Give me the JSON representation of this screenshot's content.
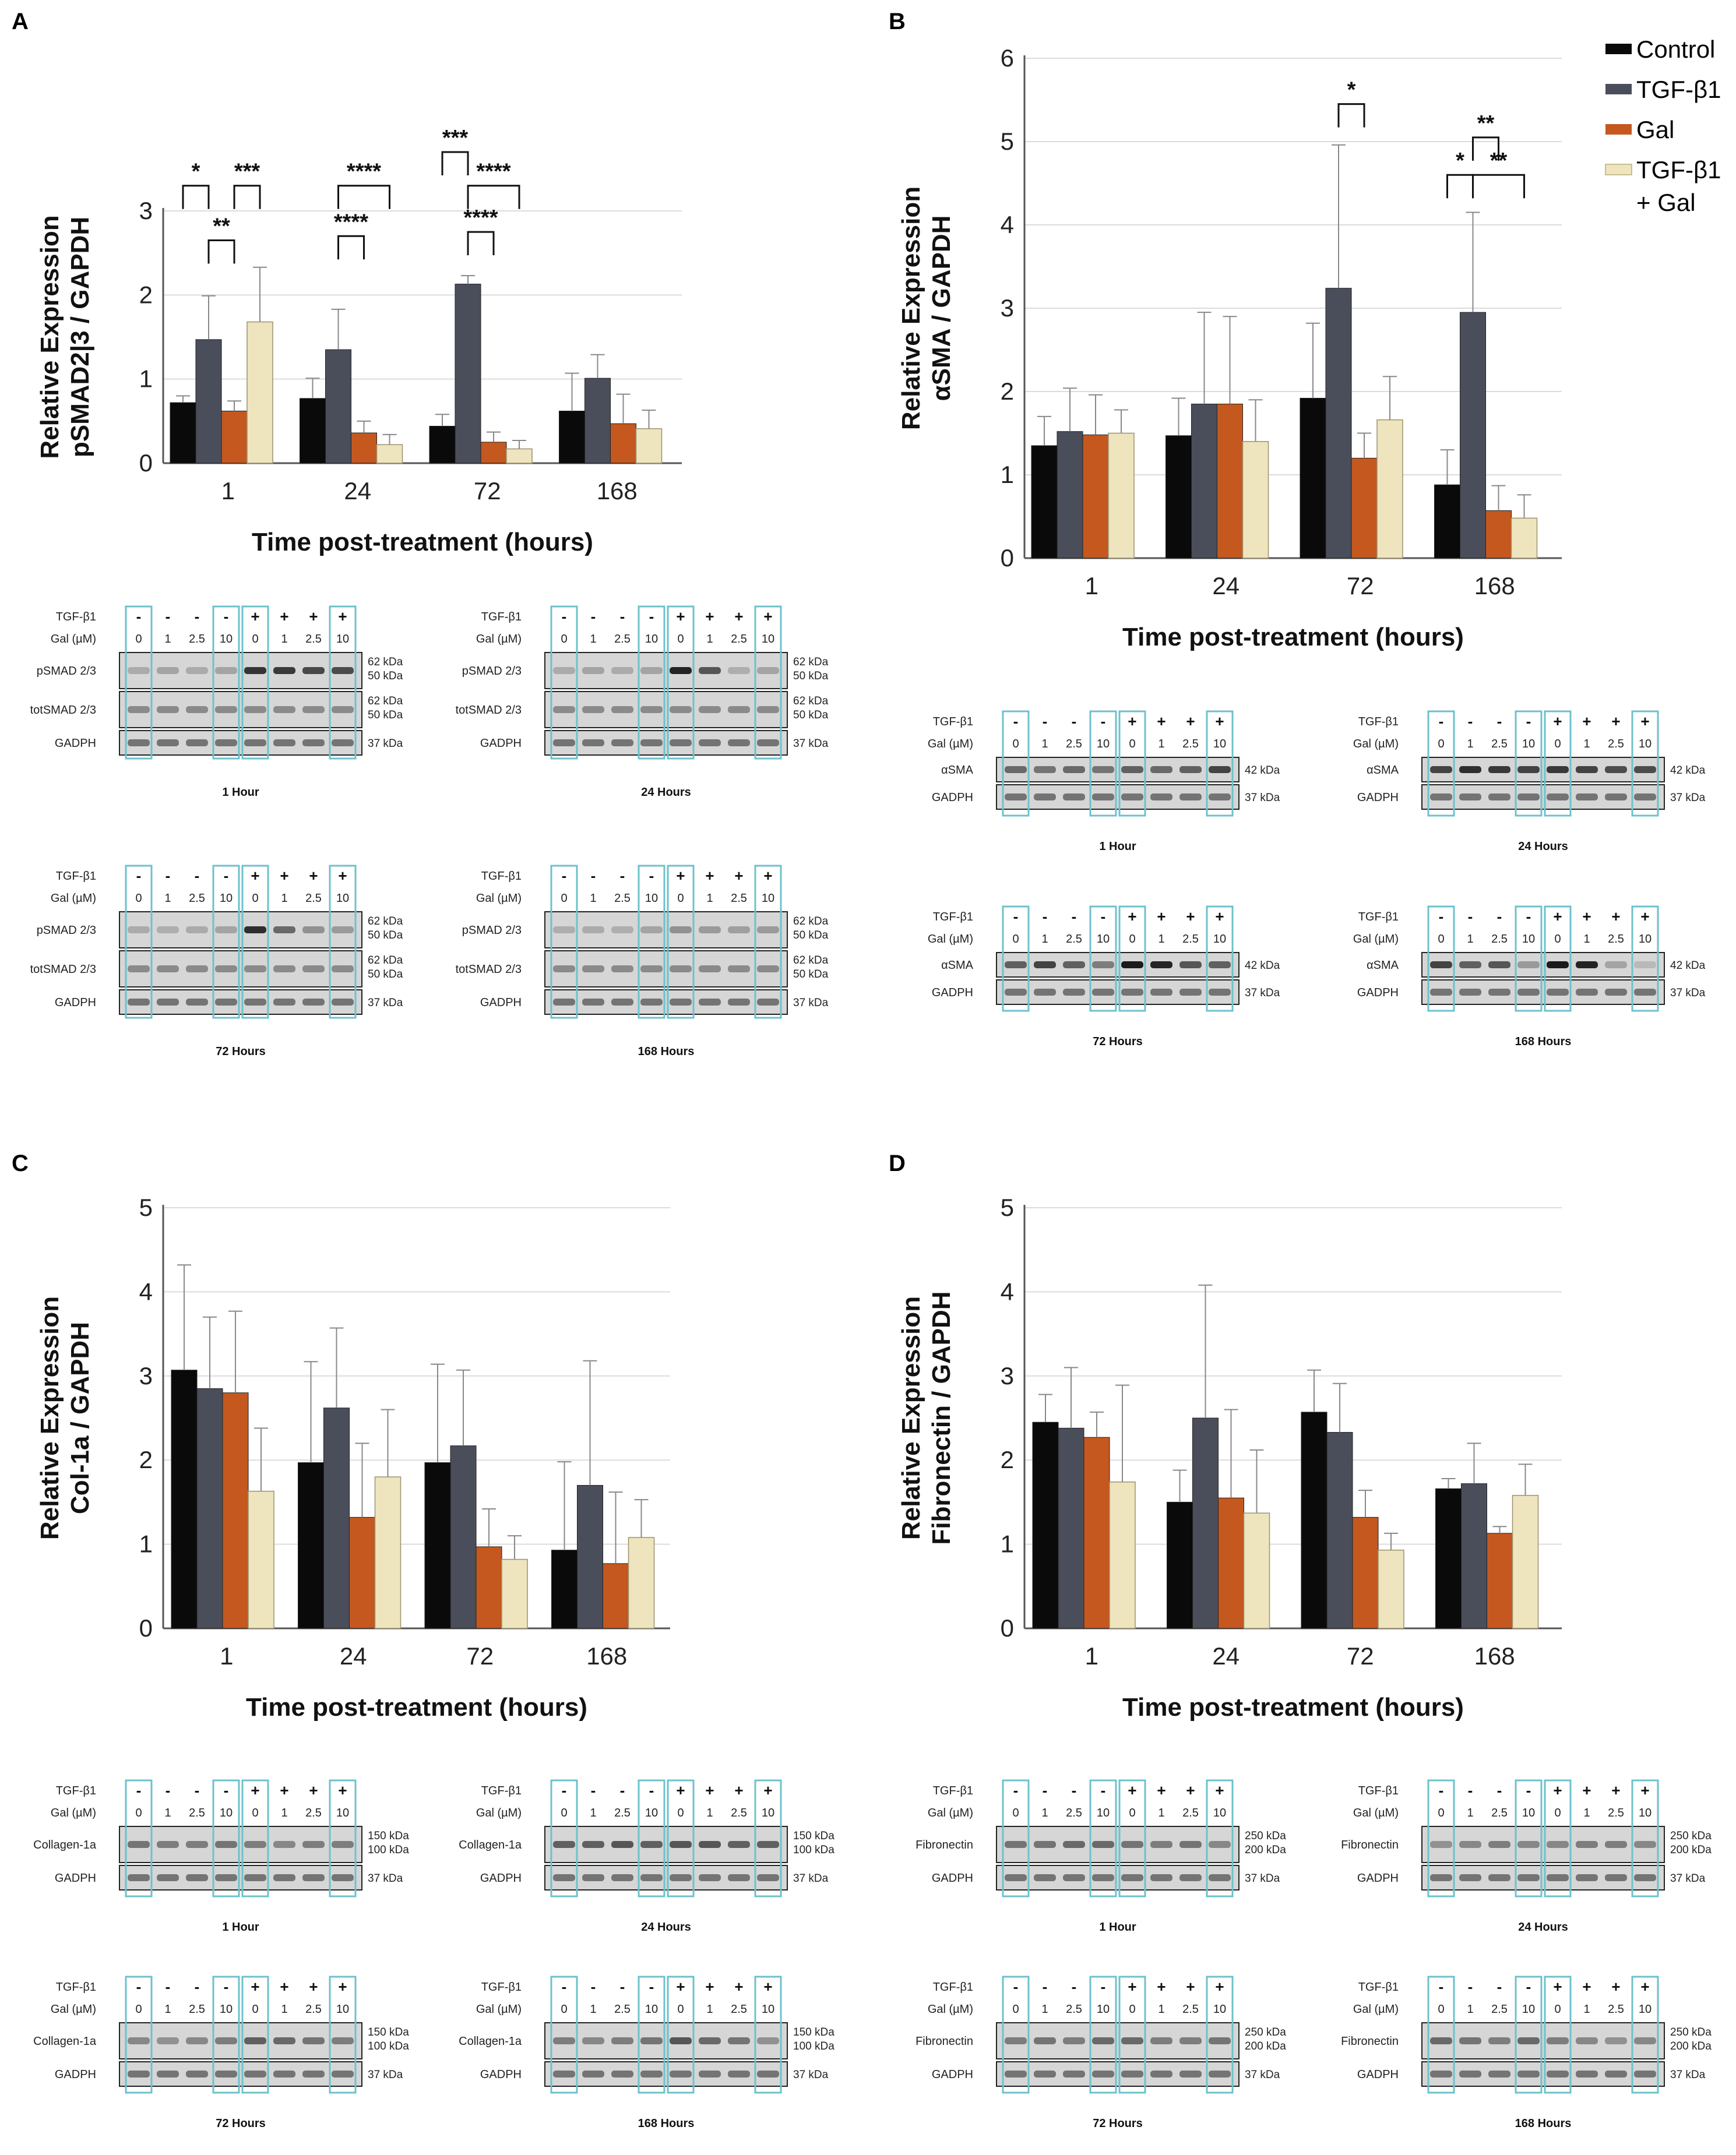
{
  "colors": {
    "control": "#0a0a0a",
    "tgf": "#4a4e5a",
    "gal": "#c4581f",
    "tgf_gal": "#eee4bd",
    "blot_box": "#6cc2cc",
    "grid": "#dcdcdc"
  },
  "legend": {
    "entries": [
      "Control",
      "TGF-β1",
      "Gal",
      "TGF-β1",
      "+ Gal"
    ]
  },
  "panel_labels": [
    "A",
    "B",
    "C",
    "D"
  ],
  "chart_data": [
    {
      "id": "A",
      "type": "bar",
      "ylabel_lines": [
        "Relative Expression",
        "pSMAD2|3 / GAPDH"
      ],
      "xlabel": "Time post-treatment (hours)",
      "categories": [
        "1",
        "24",
        "72",
        "168"
      ],
      "ylim": [
        0,
        3
      ],
      "yticks": [
        "0",
        "1",
        "2",
        "3"
      ],
      "grid": true,
      "series": [
        {
          "name": "Control",
          "values": [
            0.72,
            0.77,
            0.44,
            0.62
          ],
          "errors": [
            0.08,
            0.24,
            0.14,
            0.45
          ]
        },
        {
          "name": "TGF-β1",
          "values": [
            1.47,
            1.35,
            2.13,
            1.01
          ],
          "errors": [
            0.52,
            0.48,
            0.1,
            0.28
          ]
        },
        {
          "name": "Gal",
          "values": [
            0.62,
            0.36,
            0.25,
            0.47
          ],
          "errors": [
            0.12,
            0.14,
            0.12,
            0.35
          ]
        },
        {
          "name": "TGF-β1 + Gal",
          "values": [
            1.68,
            0.22,
            0.17,
            0.41
          ],
          "errors": [
            0.65,
            0.12,
            0.1,
            0.22
          ]
        }
      ],
      "significance": [
        {
          "label": "*",
          "from": [
            0,
            0
          ],
          "to": [
            0,
            1
          ],
          "level": 3.3
        },
        {
          "label": "**",
          "from": [
            0,
            1
          ],
          "to": [
            0,
            2
          ],
          "level": 2.65
        },
        {
          "label": "***",
          "from": [
            0,
            2
          ],
          "to": [
            0,
            3
          ],
          "level": 3.3
        },
        {
          "label": "****",
          "from": [
            1,
            1
          ],
          "to": [
            1,
            3
          ],
          "level": 3.3
        },
        {
          "label": "****",
          "from": [
            1,
            1
          ],
          "to": [
            1,
            2
          ],
          "level": 2.7
        },
        {
          "label": "***",
          "from": [
            2,
            0
          ],
          "to": [
            2,
            1
          ],
          "level": 3.7
        },
        {
          "label": "****",
          "from": [
            2,
            1
          ],
          "to": [
            2,
            3
          ],
          "level": 3.3
        },
        {
          "label": "****",
          "from": [
            2,
            1
          ],
          "to": [
            2,
            2
          ],
          "level": 2.75
        }
      ]
    },
    {
      "id": "B",
      "type": "bar",
      "ylabel_lines": [
        "Relative Expression",
        "αSMA / GAPDH"
      ],
      "xlabel": "Time post-treatment (hours)",
      "categories": [
        "1",
        "24",
        "72",
        "168"
      ],
      "ylim": [
        0,
        6
      ],
      "yticks": [
        "0",
        "1",
        "2",
        "3",
        "4",
        "5",
        "6"
      ],
      "grid": true,
      "series": [
        {
          "name": "Control",
          "values": [
            1.35,
            1.47,
            1.92,
            0.88
          ],
          "errors": [
            0.35,
            0.45,
            0.9,
            0.42
          ]
        },
        {
          "name": "TGF-β1",
          "values": [
            1.52,
            1.85,
            3.24,
            2.95
          ],
          "errors": [
            0.52,
            1.1,
            1.72,
            1.2
          ]
        },
        {
          "name": "Gal",
          "values": [
            1.48,
            1.85,
            1.2,
            0.57
          ],
          "errors": [
            0.48,
            1.05,
            0.3,
            0.3
          ]
        },
        {
          "name": "TGF-β1 + Gal",
          "values": [
            1.5,
            1.4,
            1.66,
            0.48
          ],
          "errors": [
            0.28,
            0.5,
            0.52,
            0.28
          ]
        }
      ],
      "significance": [
        {
          "label": "*",
          "from": [
            2,
            1
          ],
          "to": [
            2,
            2
          ],
          "level": 5.45
        },
        {
          "label": "**",
          "from": [
            3,
            1
          ],
          "to": [
            3,
            2
          ],
          "level": 5.05
        },
        {
          "label": "*",
          "from": [
            3,
            0
          ],
          "to": [
            3,
            1
          ],
          "level": 4.6
        },
        {
          "label": "**",
          "from": [
            3,
            1
          ],
          "to": [
            3,
            3
          ],
          "level": 4.6
        }
      ]
    },
    {
      "id": "C",
      "type": "bar",
      "ylabel_lines": [
        "Relative Expression",
        "Col-1a / GAPDH"
      ],
      "xlabel": "Time post-treatment (hours)",
      "categories": [
        "1",
        "24",
        "72",
        "168"
      ],
      "ylim": [
        0,
        5
      ],
      "yticks": [
        "0",
        "1",
        "2",
        "3",
        "4",
        "5"
      ],
      "grid": true,
      "series": [
        {
          "name": "Control",
          "values": [
            3.07,
            1.97,
            1.97,
            0.93
          ],
          "errors": [
            1.25,
            1.2,
            1.17,
            1.05
          ]
        },
        {
          "name": "TGF-β1",
          "values": [
            2.85,
            2.62,
            2.17,
            1.7
          ],
          "errors": [
            0.85,
            0.95,
            0.9,
            1.48
          ]
        },
        {
          "name": "Gal",
          "values": [
            2.8,
            1.32,
            0.97,
            0.77
          ],
          "errors": [
            0.97,
            0.88,
            0.45,
            0.85
          ]
        },
        {
          "name": "TGF-β1 + Gal",
          "values": [
            1.63,
            1.8,
            0.82,
            1.08
          ],
          "errors": [
            0.75,
            0.8,
            0.28,
            0.45
          ]
        }
      ]
    },
    {
      "id": "D",
      "type": "bar",
      "ylabel_lines": [
        "Relative Expression",
        "Fibronectin / GAPDH"
      ],
      "xlabel": "Time post-treatment (hours)",
      "categories": [
        "1",
        "24",
        "72",
        "168"
      ],
      "ylim": [
        0,
        5
      ],
      "yticks": [
        "0",
        "1",
        "2",
        "3",
        "4",
        "5"
      ],
      "grid": true,
      "series": [
        {
          "name": "Control",
          "values": [
            2.45,
            1.5,
            2.57,
            1.66
          ],
          "errors": [
            0.33,
            0.38,
            0.5,
            0.12
          ]
        },
        {
          "name": "TGF-β1",
          "values": [
            2.38,
            2.5,
            2.33,
            1.72
          ],
          "errors": [
            0.72,
            1.58,
            0.58,
            0.48
          ]
        },
        {
          "name": "Gal",
          "values": [
            2.27,
            1.55,
            1.32,
            1.13
          ],
          "errors": [
            0.3,
            1.05,
            0.32,
            0.08
          ]
        },
        {
          "name": "TGF-β1 + Gal",
          "values": [
            1.74,
            1.37,
            0.93,
            1.58
          ],
          "errors": [
            1.15,
            0.75,
            0.2,
            0.37
          ]
        }
      ]
    }
  ],
  "blots": {
    "tgf_row_label": "TGF-β1",
    "gal_row_label": "Gal (µM)",
    "tgf_values": [
      "-",
      "-",
      "-",
      "-",
      "+",
      "+",
      "+",
      "+"
    ],
    "gal_values": [
      "0",
      "1",
      "2.5",
      "10",
      "0",
      "1",
      "2.5",
      "10"
    ],
    "times": [
      "1 Hour",
      "24 Hours",
      "72 Hours",
      "168 Hours"
    ],
    "groups": [
      {
        "panel": "A",
        "rows": [
          {
            "label": "pSMAD 2/3",
            "kda": [
              "62 kDa",
              "50 kDa"
            ],
            "strong": true
          },
          {
            "label": "totSMAD 2/3",
            "kda": [
              "62 kDa",
              "50 kDa"
            ],
            "strong": false
          },
          {
            "label": "GADPH",
            "kda": [
              "37 kDa"
            ],
            "strong": false
          }
        ]
      },
      {
        "panel": "B",
        "rows": [
          {
            "label": "αSMA",
            "kda": [
              "42 kDa"
            ],
            "strong": true
          },
          {
            "label": "GADPH",
            "kda": [
              "37 kDa"
            ],
            "strong": false
          }
        ]
      },
      {
        "panel": "C",
        "rows": [
          {
            "label": "Collagen-1a",
            "kda": [
              "150 kDa",
              "100 kDa"
            ],
            "strong": false
          },
          {
            "label": "GADPH",
            "kda": [
              "37 kDa"
            ],
            "strong": false
          }
        ]
      },
      {
        "panel": "D",
        "rows": [
          {
            "label": "Fibronectin",
            "kda": [
              "250 kDa",
              "200 kDa"
            ],
            "strong": false
          },
          {
            "label": "GADPH",
            "kda": [
              "37 kDa"
            ],
            "strong": false
          }
        ]
      }
    ]
  }
}
